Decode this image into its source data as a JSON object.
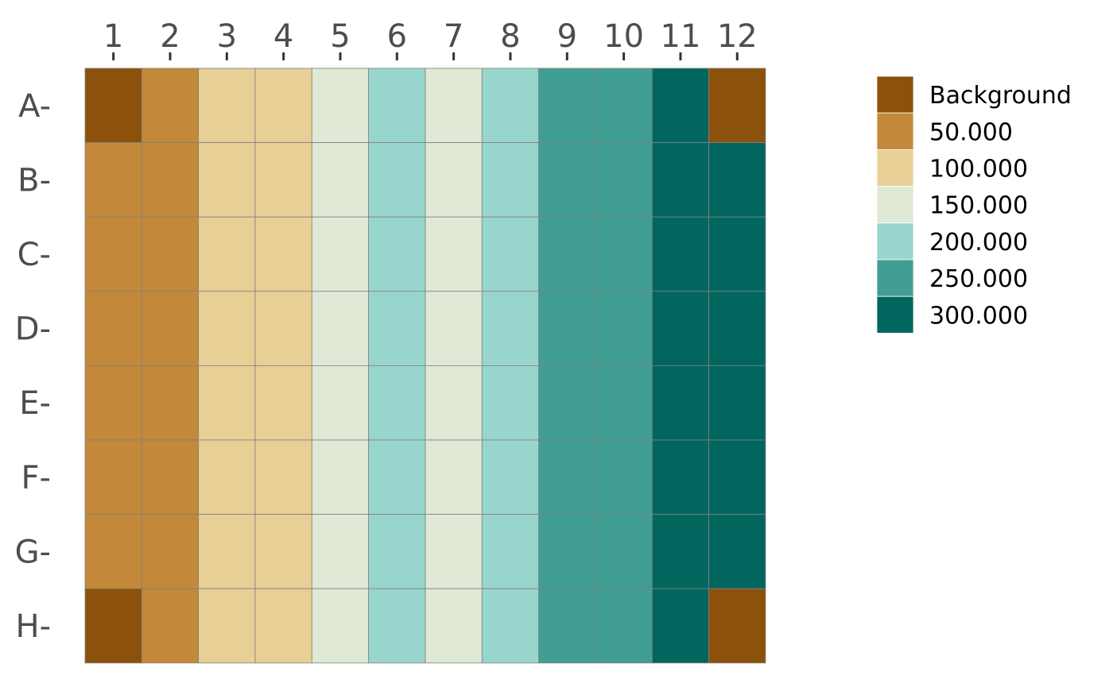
{
  "chart_data": {
    "type": "heatmap",
    "columns": [
      "1",
      "2",
      "3",
      "4",
      "5",
      "6",
      "7",
      "8",
      "9",
      "10",
      "11",
      "12"
    ],
    "rows": [
      "A",
      "B",
      "C",
      "D",
      "E",
      "F",
      "G",
      "H"
    ],
    "row_tick_labels": [
      "A-",
      "B-",
      "C-",
      "D-",
      "E-",
      "F-",
      "G-",
      "H-"
    ],
    "x_axis_position": "top",
    "grid": true,
    "legend_position": "right",
    "legend": {
      "entries": [
        {
          "label": "Background",
          "color": "#8c510a"
        },
        {
          "label": "50.000",
          "color": "#c4883a"
        },
        {
          "label": "100.000",
          "color": "#e7cf95"
        },
        {
          "label": "150.000",
          "color": "#dfe9d5"
        },
        {
          "label": "200.000",
          "color": "#98d6cd"
        },
        {
          "label": "250.000",
          "color": "#419e95"
        },
        {
          "label": "300.000",
          "color": "#01665e"
        }
      ]
    },
    "cells": [
      [
        "Background",
        "50.000",
        "100.000",
        "100.000",
        "150.000",
        "200.000",
        "150.000",
        "200.000",
        "250.000",
        "250.000",
        "300.000",
        "Background"
      ],
      [
        "50.000",
        "50.000",
        "100.000",
        "100.000",
        "150.000",
        "200.000",
        "150.000",
        "200.000",
        "250.000",
        "250.000",
        "300.000",
        "300.000"
      ],
      [
        "50.000",
        "50.000",
        "100.000",
        "100.000",
        "150.000",
        "200.000",
        "150.000",
        "200.000",
        "250.000",
        "250.000",
        "300.000",
        "300.000"
      ],
      [
        "50.000",
        "50.000",
        "100.000",
        "100.000",
        "150.000",
        "200.000",
        "150.000",
        "200.000",
        "250.000",
        "250.000",
        "300.000",
        "300.000"
      ],
      [
        "50.000",
        "50.000",
        "100.000",
        "100.000",
        "150.000",
        "200.000",
        "150.000",
        "200.000",
        "250.000",
        "250.000",
        "300.000",
        "300.000"
      ],
      [
        "50.000",
        "50.000",
        "100.000",
        "100.000",
        "150.000",
        "200.000",
        "150.000",
        "200.000",
        "250.000",
        "250.000",
        "300.000",
        "300.000"
      ],
      [
        "50.000",
        "50.000",
        "100.000",
        "100.000",
        "150.000",
        "200.000",
        "150.000",
        "200.000",
        "250.000",
        "250.000",
        "300.000",
        "300.000"
      ],
      [
        "Background",
        "50.000",
        "100.000",
        "100.000",
        "150.000",
        "200.000",
        "150.000",
        "200.000",
        "250.000",
        "250.000",
        "300.000",
        "Background"
      ]
    ],
    "colors": {
      "grid_line": "#808080",
      "tick": "#333333",
      "tick_label": "#4d4d4d"
    }
  }
}
